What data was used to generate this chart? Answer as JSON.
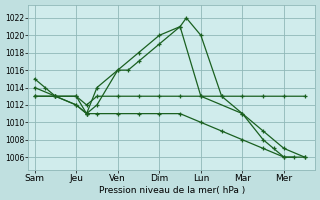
{
  "background_color": "#c0e0e0",
  "plot_bg_color": "#d0ecec",
  "grid_color": "#90b8b8",
  "line_color": "#1a6020",
  "xlabel": "Pression niveau de la mer( hPa )",
  "ylim": [
    1004.5,
    1023.5
  ],
  "yticks": [
    1006,
    1008,
    1010,
    1012,
    1014,
    1016,
    1018,
    1020,
    1022
  ],
  "xtick_labels": [
    "Sam",
    "Jeu",
    "Ven",
    "Dim",
    "Lun",
    "Mar",
    "Mer"
  ],
  "xtick_positions": [
    0,
    2,
    4,
    6,
    8,
    10,
    12
  ],
  "xlim": [
    -0.3,
    13.5
  ],
  "series": [
    {
      "x": [
        0,
        0.5,
        1,
        2,
        2.5,
        3,
        4,
        4.5,
        5,
        6,
        7,
        7.3,
        8,
        9,
        10,
        11,
        11.5,
        12,
        12.5
      ],
      "y": [
        1015,
        1014,
        1013,
        1013,
        1011,
        1014,
        1016,
        1016,
        1017,
        1019,
        1021,
        1022,
        1020,
        1013,
        1011,
        1008,
        1007,
        1006,
        1006
      ]
    },
    {
      "x": [
        0,
        1,
        2,
        2.5,
        3,
        4,
        5,
        6,
        7,
        8,
        9,
        10,
        11,
        12,
        13
      ],
      "y": [
        1013,
        1013,
        1013,
        1012,
        1013,
        1013,
        1013,
        1013,
        1013,
        1013,
        1013,
        1013,
        1013,
        1013,
        1013
      ]
    },
    {
      "x": [
        0,
        1,
        2,
        2.5,
        3,
        4,
        5,
        6,
        7,
        8,
        10,
        11,
        12,
        13
      ],
      "y": [
        1014,
        1013,
        1012,
        1011,
        1012,
        1016,
        1018,
        1020,
        1021,
        1013,
        1011,
        1009,
        1007,
        1006
      ]
    },
    {
      "x": [
        0,
        1,
        2,
        2.5,
        3,
        4,
        5,
        6,
        7,
        8,
        9,
        10,
        11,
        12,
        13
      ],
      "y": [
        1013,
        1013,
        1012,
        1011,
        1011,
        1011,
        1011,
        1011,
        1011,
        1010,
        1009,
        1008,
        1007,
        1006,
        1006
      ]
    }
  ]
}
